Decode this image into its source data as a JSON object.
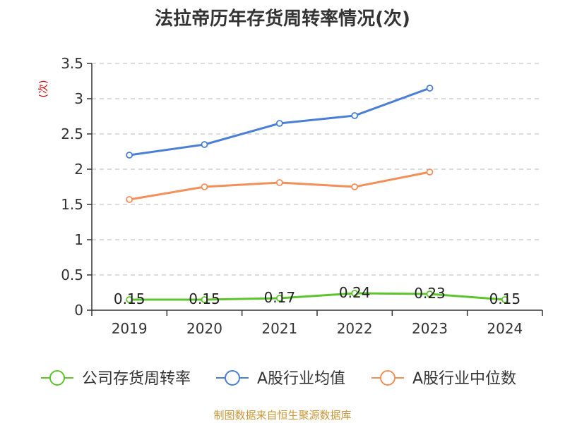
{
  "chart_data": {
    "type": "line",
    "title": "法拉帝历年存货周转率情况(次)",
    "ylabel": "(次)",
    "categories": [
      "2019",
      "2020",
      "2021",
      "2022",
      "2023",
      "2024"
    ],
    "y_ticks": [
      "0",
      "0.5",
      "1",
      "1.5",
      "2",
      "2.5",
      "3",
      "3.5"
    ],
    "ylim": [
      0,
      3.5
    ],
    "grid": true,
    "legend_position": "bottom",
    "series": [
      {
        "name": "公司存货周转率",
        "color": "#5ec42d",
        "values": [
          0.15,
          0.15,
          0.17,
          0.24,
          0.23,
          0.15
        ],
        "labels": [
          "0.15",
          "0.15",
          "0.17",
          "0.24",
          "0.23",
          "0.15"
        ],
        "show_labels": true
      },
      {
        "name": "A股行业均值",
        "color": "#4a7fd6",
        "values": [
          2.2,
          2.35,
          2.65,
          2.76,
          3.15,
          null
        ],
        "show_labels": false
      },
      {
        "name": "A股行业中位数",
        "color": "#f58f5a",
        "values": [
          1.57,
          1.75,
          1.81,
          1.75,
          1.96,
          null
        ],
        "show_labels": false
      }
    ]
  },
  "footer": {
    "source": "制图数据来自恒生聚源数据库"
  }
}
